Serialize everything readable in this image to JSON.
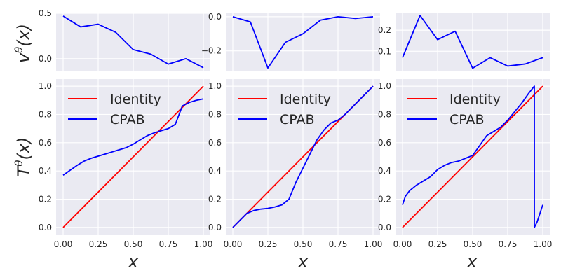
{
  "colors": {
    "panel_bg": "#EAEAF2",
    "grid": "#FFFFFF",
    "identity": "#FF0000",
    "cpab": "#0000FF"
  },
  "labels": {
    "velocity_ylabel": "v",
    "velocity_sup": "θ",
    "velocity_arg": "(x)",
    "transform_ylabel": "T",
    "transform_sup": "θ",
    "transform_arg": "(x)",
    "xlabel": "x"
  },
  "chart_data": [
    {
      "type": "line",
      "row": "velocity",
      "column": 1,
      "xlim": [
        -0.05,
        1.05
      ],
      "ylim": [
        -0.14,
        0.5
      ],
      "yticks": [
        0.0,
        0.5
      ],
      "ytick_labels": [
        "0.0",
        "0.5"
      ],
      "xticks": [
        0,
        0.25,
        0.5,
        0.75,
        1.0
      ],
      "grid": true,
      "series": [
        {
          "color": "#0000FF",
          "x": [
            0,
            0.125,
            0.25,
            0.375,
            0.5,
            0.625,
            0.75,
            0.875,
            1.0
          ],
          "y": [
            0.47,
            0.35,
            0.38,
            0.29,
            0.1,
            0.05,
            -0.06,
            0.0,
            -0.1
          ]
        }
      ]
    },
    {
      "type": "line",
      "row": "velocity",
      "column": 2,
      "xlim": [
        -0.05,
        1.05
      ],
      "ylim": [
        -0.32,
        0.02
      ],
      "yticks": [
        0.0,
        -0.2
      ],
      "ytick_labels": [
        "0.0",
        "−0.2"
      ],
      "xticks": [
        0,
        0.25,
        0.5,
        0.75,
        1.0
      ],
      "grid": true,
      "series": [
        {
          "color": "#0000FF",
          "x": [
            0,
            0.125,
            0.25,
            0.375,
            0.5,
            0.625,
            0.75,
            0.875,
            1.0
          ],
          "y": [
            0.0,
            -0.03,
            -0.3,
            -0.15,
            -0.1,
            -0.02,
            0.0,
            -0.01,
            0.0
          ]
        }
      ]
    },
    {
      "type": "line",
      "row": "velocity",
      "column": 3,
      "xlim": [
        -0.05,
        1.05
      ],
      "ylim": [
        0.005,
        0.28
      ],
      "yticks": [
        0.1,
        0.2
      ],
      "ytick_labels": [
        "0.1",
        "0.2"
      ],
      "xticks": [
        0,
        0.25,
        0.5,
        0.75,
        1.0
      ],
      "grid": true,
      "series": [
        {
          "color": "#0000FF",
          "x": [
            0,
            0.125,
            0.25,
            0.375,
            0.5,
            0.625,
            0.75,
            0.875,
            1.0
          ],
          "y": [
            0.07,
            0.27,
            0.155,
            0.195,
            0.02,
            0.07,
            0.03,
            0.04,
            0.07
          ]
        }
      ]
    },
    {
      "type": "line",
      "row": "transform",
      "column": 1,
      "xlim": [
        -0.05,
        1.05
      ],
      "ylim": [
        -0.05,
        1.05
      ],
      "yticks": [
        0.0,
        0.2,
        0.4,
        0.6,
        0.8,
        1.0
      ],
      "ytick_labels": [
        "0.0",
        "0.2",
        "0.4",
        "0.6",
        "0.8",
        "1.0"
      ],
      "xticks": [
        0,
        0.25,
        0.5,
        0.75,
        1.0
      ],
      "xtick_labels": [
        "0.00",
        "0.25",
        "0.50",
        "0.75",
        "1.00"
      ],
      "grid": true,
      "legend": {
        "position": "top-left",
        "entries": [
          "Identity",
          "CPAB"
        ]
      },
      "series": [
        {
          "name": "Identity",
          "color": "#FF0000",
          "x": [
            0,
            1
          ],
          "y": [
            0,
            1
          ]
        },
        {
          "name": "CPAB",
          "color": "#0000FF",
          "x": [
            0,
            0.05,
            0.1,
            0.15,
            0.2,
            0.25,
            0.3,
            0.35,
            0.4,
            0.45,
            0.5,
            0.55,
            0.6,
            0.65,
            0.7,
            0.75,
            0.8,
            0.85,
            0.9,
            0.95,
            1.0
          ],
          "y": [
            0.37,
            0.405,
            0.44,
            0.47,
            0.49,
            0.505,
            0.52,
            0.535,
            0.55,
            0.565,
            0.59,
            0.62,
            0.65,
            0.67,
            0.685,
            0.7,
            0.73,
            0.86,
            0.885,
            0.9,
            0.91
          ]
        }
      ]
    },
    {
      "type": "line",
      "row": "transform",
      "column": 2,
      "xlim": [
        -0.05,
        1.05
      ],
      "ylim": [
        -0.05,
        1.05
      ],
      "yticks": [
        0.0,
        0.2,
        0.4,
        0.6,
        0.8,
        1.0
      ],
      "ytick_labels": [
        "0.0",
        "0.2",
        "0.4",
        "0.6",
        "0.8",
        "1.0"
      ],
      "xticks": [
        0,
        0.25,
        0.5,
        0.75,
        1.0
      ],
      "xtick_labels": [
        "0.00",
        "0.25",
        "0.50",
        "0.75",
        "1.00"
      ],
      "grid": true,
      "legend": {
        "position": "top-left",
        "entries": [
          "Identity",
          "CPAB"
        ]
      },
      "series": [
        {
          "name": "Identity",
          "color": "#FF0000",
          "x": [
            0,
            1
          ],
          "y": [
            0,
            1
          ]
        },
        {
          "name": "CPAB",
          "color": "#0000FF",
          "x": [
            0,
            0.05,
            0.1,
            0.15,
            0.2,
            0.25,
            0.3,
            0.35,
            0.4,
            0.45,
            0.5,
            0.55,
            0.6,
            0.65,
            0.7,
            0.75,
            0.8,
            0.85,
            0.9,
            0.95,
            1.0
          ],
          "y": [
            0.0,
            0.05,
            0.1,
            0.12,
            0.13,
            0.135,
            0.145,
            0.16,
            0.2,
            0.32,
            0.42,
            0.52,
            0.62,
            0.69,
            0.74,
            0.76,
            0.8,
            0.85,
            0.9,
            0.95,
            1.0
          ]
        }
      ]
    },
    {
      "type": "line",
      "row": "transform",
      "column": 3,
      "xlim": [
        -0.05,
        1.05
      ],
      "ylim": [
        -0.05,
        1.05
      ],
      "yticks": [
        0.0,
        0.2,
        0.4,
        0.6,
        0.8,
        1.0
      ],
      "ytick_labels": [
        "0.0",
        "0.2",
        "0.4",
        "0.6",
        "0.8",
        "1.0"
      ],
      "xticks": [
        0,
        0.25,
        0.5,
        0.75,
        1.0
      ],
      "xtick_labels": [
        "0.00",
        "0.25",
        "0.50",
        "0.75",
        "1.00"
      ],
      "grid": true,
      "legend": {
        "position": "top-left",
        "entries": [
          "Identity",
          "CPAB"
        ]
      },
      "series": [
        {
          "name": "Identity",
          "color": "#FF0000",
          "x": [
            0,
            1
          ],
          "y": [
            0,
            1
          ]
        },
        {
          "name": "CPAB",
          "color": "#0000FF",
          "x": [
            0,
            0.02,
            0.05,
            0.1,
            0.15,
            0.2,
            0.25,
            0.3,
            0.35,
            0.4,
            0.45,
            0.5,
            0.55,
            0.6,
            0.65,
            0.7,
            0.75,
            0.8,
            0.85,
            0.9,
            0.94,
            0.94,
            0.96,
            0.98,
            1.0
          ],
          "y": [
            0.16,
            0.22,
            0.26,
            0.3,
            0.33,
            0.36,
            0.41,
            0.44,
            0.46,
            0.47,
            0.49,
            0.51,
            0.58,
            0.65,
            0.68,
            0.71,
            0.76,
            0.82,
            0.88,
            0.95,
            1.0,
            0.0,
            0.04,
            0.1,
            0.16
          ]
        }
      ]
    }
  ]
}
